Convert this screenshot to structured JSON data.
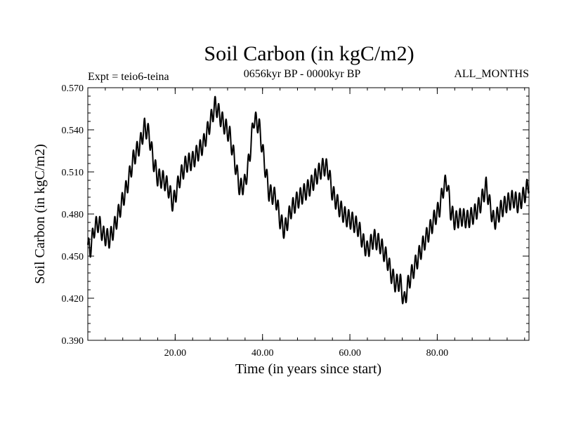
{
  "chart_data": {
    "type": "line",
    "title": "Soil Carbon (in kgC/m2)",
    "subtitle": "0656kyr BP - 0000kyr BP",
    "experiment": "Expt = teio6-teina",
    "months": "ALL_MONTHS",
    "xlabel": "Time (in years since start)",
    "ylabel": "Soil Carbon (in kgC/m2)",
    "xlim": [
      0,
      101
    ],
    "ylim": [
      0.39,
      0.57
    ],
    "x_ticks": [
      20,
      40,
      60,
      80
    ],
    "x_tick_labels": [
      "20.00",
      "40.00",
      "60.00",
      "80.00"
    ],
    "y_ticks": [
      0.39,
      0.42,
      0.45,
      0.48,
      0.51,
      0.54,
      0.57
    ],
    "y_tick_labels": [
      "0.390",
      "0.420",
      "0.450",
      "0.480",
      "0.510",
      "0.540",
      "0.570"
    ],
    "oscillation": {
      "amplitude": 0.0065,
      "period": 0.85
    },
    "series": [
      {
        "name": "Soil Carbon",
        "color": "#000000",
        "trend": [
          [
            0,
            0.458
          ],
          [
            0.5,
            0.454
          ],
          [
            1.5,
            0.47
          ],
          [
            2.5,
            0.474
          ],
          [
            3.5,
            0.465
          ],
          [
            5,
            0.462
          ],
          [
            6,
            0.47
          ],
          [
            7,
            0.48
          ],
          [
            9,
            0.5
          ],
          [
            10.5,
            0.52
          ],
          [
            12,
            0.53
          ],
          [
            13,
            0.542
          ],
          [
            14,
            0.537
          ],
          [
            15,
            0.518
          ],
          [
            16,
            0.506
          ],
          [
            17.5,
            0.504
          ],
          [
            18.5,
            0.498
          ],
          [
            19.5,
            0.487
          ],
          [
            21,
            0.505
          ],
          [
            22.5,
            0.516
          ],
          [
            24,
            0.518
          ],
          [
            25,
            0.523
          ],
          [
            26.5,
            0.53
          ],
          [
            28,
            0.545
          ],
          [
            29.2,
            0.558
          ],
          [
            30.5,
            0.548
          ],
          [
            31.5,
            0.542
          ],
          [
            32.5,
            0.536
          ],
          [
            33.5,
            0.52
          ],
          [
            34.8,
            0.498
          ],
          [
            36,
            0.502
          ],
          [
            37,
            0.52
          ],
          [
            38,
            0.548
          ],
          [
            39.2,
            0.543
          ],
          [
            40.5,
            0.515
          ],
          [
            41.5,
            0.495
          ],
          [
            43,
            0.492
          ],
          [
            44,
            0.476
          ],
          [
            45,
            0.468
          ],
          [
            46.5,
            0.483
          ],
          [
            48,
            0.49
          ],
          [
            49.5,
            0.495
          ],
          [
            51,
            0.5
          ],
          [
            52.5,
            0.508
          ],
          [
            54,
            0.514
          ],
          [
            55,
            0.512
          ],
          [
            56,
            0.495
          ],
          [
            57.5,
            0.485
          ],
          [
            59,
            0.478
          ],
          [
            60.5,
            0.475
          ],
          [
            62,
            0.47
          ],
          [
            63,
            0.46
          ],
          [
            64,
            0.454
          ],
          [
            65.5,
            0.463
          ],
          [
            67,
            0.458
          ],
          [
            68.5,
            0.448
          ],
          [
            69.5,
            0.437
          ],
          [
            70.5,
            0.43
          ],
          [
            71.5,
            0.432
          ],
          [
            72.4,
            0.417
          ],
          [
            73.5,
            0.432
          ],
          [
            74.5,
            0.44
          ],
          [
            75.5,
            0.448
          ],
          [
            77,
            0.46
          ],
          [
            78.5,
            0.47
          ],
          [
            79.5,
            0.478
          ],
          [
            80.5,
            0.484
          ],
          [
            81.5,
            0.5
          ],
          [
            82.3,
            0.503
          ],
          [
            83,
            0.483
          ],
          [
            84,
            0.475
          ],
          [
            85.5,
            0.478
          ],
          [
            87,
            0.476
          ],
          [
            88.5,
            0.48
          ],
          [
            90,
            0.488
          ],
          [
            91.2,
            0.5
          ],
          [
            92,
            0.487
          ],
          [
            93,
            0.474
          ],
          [
            94.5,
            0.483
          ],
          [
            96,
            0.488
          ],
          [
            97.5,
            0.491
          ],
          [
            98.5,
            0.487
          ],
          [
            100,
            0.494
          ],
          [
            101,
            0.502
          ]
        ]
      }
    ]
  }
}
